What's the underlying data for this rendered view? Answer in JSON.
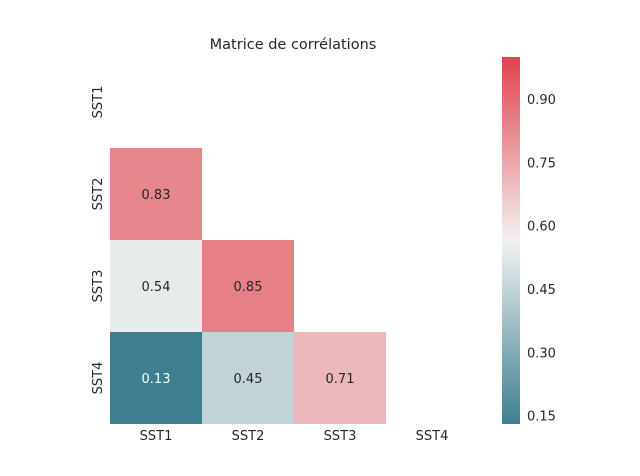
{
  "chart_data": {
    "type": "heatmap",
    "title": "Matrice de corrélations",
    "row_labels": [
      "SST1",
      "SST2",
      "SST3",
      "SST4"
    ],
    "col_labels": [
      "SST1",
      "SST2",
      "SST3",
      "SST4"
    ],
    "mask": "upper-triangle-including-diagonal",
    "cells": [
      {
        "row": 1,
        "col": 0,
        "value": 0.83,
        "label": "0.83"
      },
      {
        "row": 2,
        "col": 0,
        "value": 0.54,
        "label": "0.54"
      },
      {
        "row": 2,
        "col": 1,
        "value": 0.85,
        "label": "0.85"
      },
      {
        "row": 3,
        "col": 0,
        "value": 0.13,
        "label": "0.13"
      },
      {
        "row": 3,
        "col": 1,
        "value": 0.45,
        "label": "0.45"
      },
      {
        "row": 3,
        "col": 2,
        "value": 0.71,
        "label": "0.71"
      }
    ],
    "colorbar": {
      "range": [
        0.13,
        1.0
      ],
      "ticks": [
        0.15,
        0.3,
        0.45,
        0.6,
        0.75,
        0.9
      ],
      "tick_labels": [
        "0.15",
        "0.30",
        "0.45",
        "0.60",
        "0.75",
        "0.90"
      ],
      "colors": {
        "low": "#3d7f91",
        "mid": "#f2f2f2",
        "high": "#e0424d"
      }
    },
    "grid": false
  }
}
